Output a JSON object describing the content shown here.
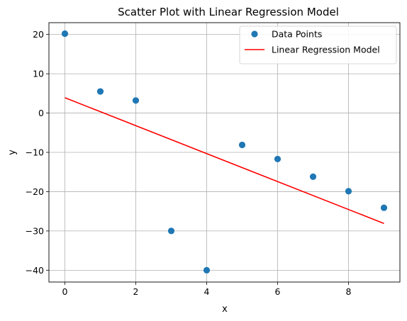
{
  "chart_data": {
    "type": "scatter",
    "title": "Scatter Plot with Linear Regression Model",
    "xlabel": "x",
    "ylabel": "y",
    "xlim": [
      -0.45,
      9.45
    ],
    "ylim": [
      -43,
      23
    ],
    "xticks": [
      0,
      2,
      4,
      6,
      8
    ],
    "yticks": [
      -40,
      -30,
      -20,
      -10,
      0,
      10,
      20
    ],
    "grid": true,
    "legend_position": "top-right",
    "series": [
      {
        "name": "Data Points",
        "kind": "scatter",
        "color": "#1f77b4",
        "x": [
          0,
          1,
          2,
          3,
          4,
          5,
          6,
          7,
          8,
          9
        ],
        "y": [
          20.2,
          5.5,
          3.2,
          -30.0,
          -40.0,
          -8.1,
          -11.7,
          -16.2,
          -19.9,
          -24.1
        ]
      },
      {
        "name": "Linear Regression Model",
        "kind": "line",
        "color": "#ff0000",
        "x": [
          0,
          9
        ],
        "y": [
          3.9,
          -28.1
        ]
      }
    ]
  }
}
